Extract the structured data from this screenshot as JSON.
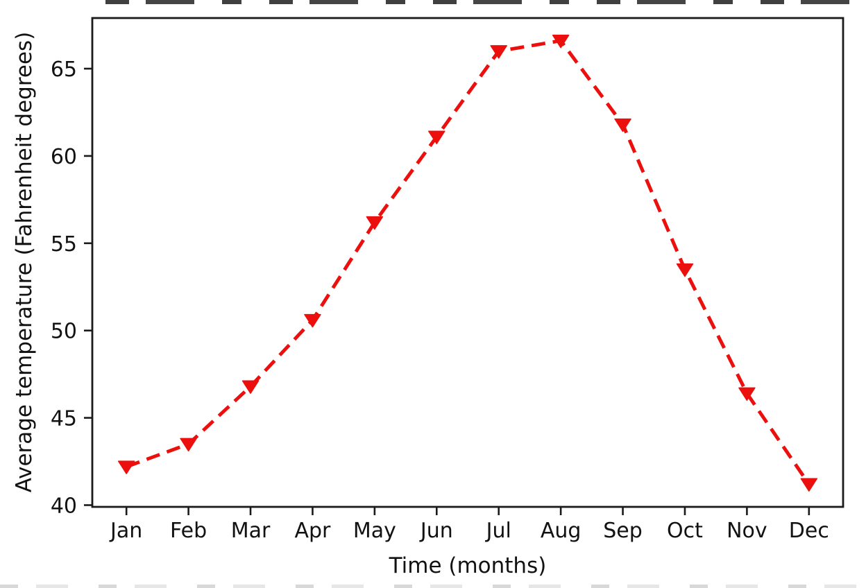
{
  "chart_data": {
    "type": "line",
    "title": "",
    "xlabel": "Time (months)",
    "ylabel": "Average temperature (Fahrenheit degrees)",
    "categories": [
      "Jan",
      "Feb",
      "Mar",
      "Apr",
      "May",
      "Jun",
      "Jul",
      "Aug",
      "Sep",
      "Oct",
      "Nov",
      "Dec"
    ],
    "series": [
      {
        "name": "Average temperature",
        "values": [
          42.2,
          43.5,
          46.8,
          50.6,
          56.2,
          61.1,
          66.0,
          66.6,
          61.8,
          53.5,
          46.4,
          41.2
        ],
        "color": "#eb100d",
        "line_style": "dashed",
        "marker": "triangle-down"
      }
    ],
    "y_ticks": [
      40,
      45,
      50,
      55,
      60,
      65
    ],
    "ylim": [
      39.9,
      67.9
    ],
    "xlim": [
      -0.55,
      11.55
    ],
    "grid": false,
    "legend": "none"
  },
  "colors": {
    "line": "#eb100d",
    "axis": "#1a1a1a",
    "text": "#121212",
    "background": "#ffffff"
  }
}
